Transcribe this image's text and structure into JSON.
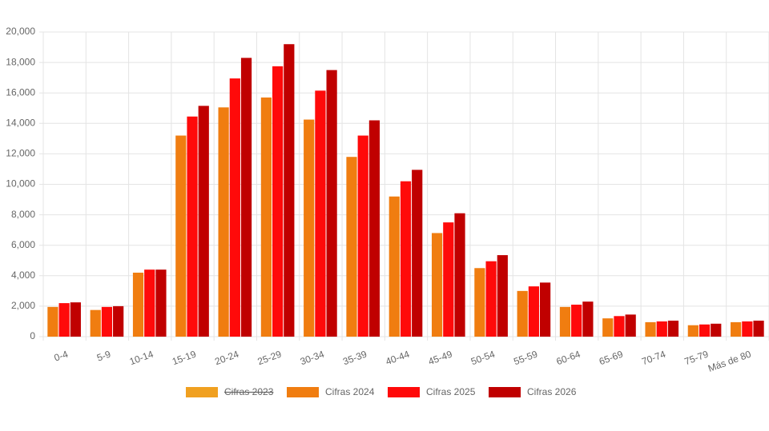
{
  "chart_data": {
    "type": "bar",
    "categories": [
      "0-4",
      "5-9",
      "10-14",
      "15-19",
      "20-24",
      "25-29",
      "30-34",
      "35-39",
      "40-44",
      "45-49",
      "50-54",
      "55-59",
      "60-64",
      "65-69",
      "70-74",
      "75-79",
      "Más de 80"
    ],
    "series": [
      {
        "name": "Cifras 2023",
        "color": "#f0a020",
        "hidden": true,
        "values": [
          null,
          null,
          null,
          null,
          null,
          null,
          null,
          null,
          null,
          null,
          null,
          null,
          null,
          null,
          null,
          null,
          null
        ]
      },
      {
        "name": "Cifras 2024",
        "color": "#f07d10",
        "values": [
          1950,
          1750,
          4200,
          13200,
          15050,
          15700,
          14250,
          11800,
          9200,
          6800,
          4500,
          3000,
          1950,
          1200,
          950,
          750,
          950
        ]
      },
      {
        "name": "Cifras 2025",
        "color": "#ff0a0a",
        "values": [
          2200,
          1950,
          4400,
          14450,
          16950,
          17750,
          16150,
          13200,
          10200,
          7500,
          4950,
          3300,
          2100,
          1350,
          1000,
          800,
          1000
        ]
      },
      {
        "name": "Cifras 2026",
        "color": "#c00000",
        "values": [
          2250,
          2000,
          4400,
          15150,
          18300,
          19200,
          17500,
          14200,
          10950,
          8100,
          5350,
          3550,
          2300,
          1450,
          1050,
          850,
          1050
        ]
      }
    ],
    "ylim": [
      0,
      20000
    ],
    "yticks": [
      0,
      {
        "value": 2000,
        "label": "2,000"
      },
      {
        "value": 4000,
        "label": "4,000"
      },
      {
        "value": 6000,
        "label": "6,000"
      },
      {
        "value": 8000,
        "label": "8,000"
      },
      {
        "value": 10000,
        "label": "10,000"
      },
      {
        "value": 12000,
        "label": "12,000"
      },
      {
        "value": 14000,
        "label": "14,000"
      },
      {
        "value": 16000,
        "label": "16,000"
      },
      {
        "value": 18000,
        "label": "18,000"
      },
      {
        "value": 20000,
        "label": "20,000"
      }
    ],
    "grid": true,
    "legend": "bottom"
  }
}
